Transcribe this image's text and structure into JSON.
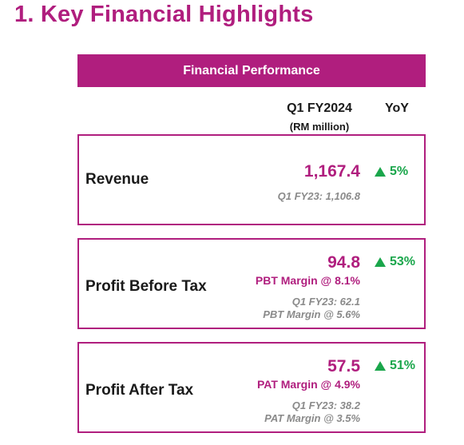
{
  "page": {
    "title": "1. Key Financial Highlights"
  },
  "table": {
    "banner": "Financial Performance",
    "col_period": "Q1 FY2024",
    "col_unit": "(RM million)",
    "col_yoy": "YoY",
    "colors": {
      "accent": "#b01e7e",
      "positive": "#1aa64b",
      "muted": "#8a8a8a"
    },
    "rows": [
      {
        "label": "Revenue",
        "value": "1,167.4",
        "yoy": "5%",
        "yoy_icon": "up-triangle-icon",
        "prior": "Q1 FY23: 1,106.8"
      },
      {
        "label": "Profit Before Tax",
        "value": "94.8",
        "margin": "PBT Margin @ 8.1%",
        "yoy": "53%",
        "yoy_icon": "up-triangle-icon",
        "prior": "Q1 FY23: 62.1",
        "prior_margin": "PBT Margin @ 5.6%"
      },
      {
        "label": "Profit After Tax",
        "value": "57.5",
        "margin": "PAT Margin @ 4.9%",
        "yoy": "51%",
        "yoy_icon": "up-triangle-icon",
        "prior": "Q1 FY23: 38.2",
        "prior_margin": "PAT Margin @ 3.5%"
      }
    ]
  }
}
